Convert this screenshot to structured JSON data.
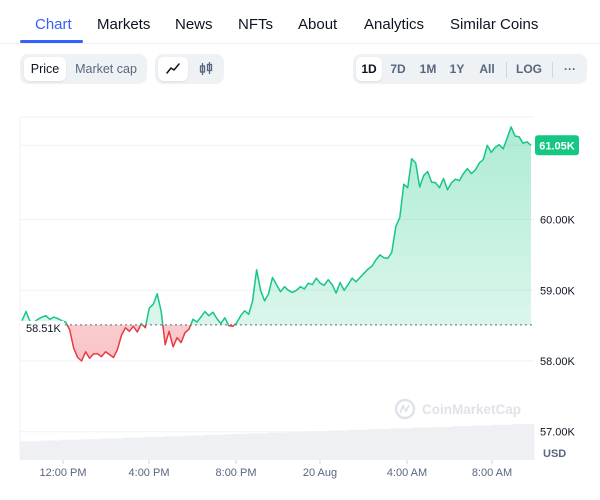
{
  "tabs": [
    "Chart",
    "Markets",
    "News",
    "NFTs",
    "About",
    "Analytics",
    "Similar Coins"
  ],
  "active_tab": "Chart",
  "data_toggle": {
    "options": [
      "Price",
      "Market cap"
    ],
    "selected": "Price"
  },
  "chart_type_toggle": {
    "options": [
      "line-chart-icon",
      "candlestick-icon"
    ],
    "selected": "line-chart-icon"
  },
  "range_toggle": {
    "options": [
      "1D",
      "7D",
      "1M",
      "1Y",
      "All"
    ],
    "selected": "1D",
    "log_label": "LOG",
    "more_label": "···"
  },
  "colors": {
    "accent": "#3861fb",
    "up": "#16c784",
    "down": "#ea3943",
    "price_tag_bg": "#16c784"
  },
  "chart_data": {
    "type": "area",
    "x_ticks": [
      "12:00 PM",
      "4:00 PM",
      "8:00 PM",
      "20 Aug",
      "4:00 AM",
      "8:00 AM"
    ],
    "y_ticks": [
      "61.05K",
      "60.00K",
      "59.00K",
      "58.00K",
      "57.00K"
    ],
    "ylim": [
      56600,
      61450
    ],
    "yunit": "USD",
    "reference_label": "58.51K",
    "reference_value": 58510,
    "current_label": "61.05K",
    "current_value": 61050,
    "watermark": "CoinMarketCap",
    "series": [
      {
        "values": [
          58570,
          58700,
          58560,
          58550,
          58590,
          58620,
          58640,
          58590,
          58620,
          58600,
          58570,
          58550,
          58440,
          58180,
          58050,
          58000,
          58130,
          58040,
          58100,
          58100,
          58060,
          58130,
          58090,
          58050,
          58160,
          58360,
          58470,
          58420,
          58490,
          58410,
          58530,
          58470,
          58750,
          58800,
          58950,
          58700,
          58230,
          58420,
          58200,
          58330,
          58260,
          58400,
          58450,
          58590,
          58550,
          58620,
          58700,
          58640,
          58690,
          58600,
          58530,
          58610,
          58500,
          58490,
          58540,
          58640,
          58710,
          58660,
          58850,
          59290,
          59000,
          58850,
          58950,
          59180,
          59080,
          58980,
          59050,
          59000,
          58970,
          59000,
          59050,
          59020,
          59100,
          59080,
          59170,
          59100,
          59070,
          59150,
          59080,
          58960,
          59110,
          59000,
          59080,
          59170,
          59120,
          59180,
          59240,
          59300,
          59340,
          59430,
          59500,
          59460,
          59450,
          59540,
          59900,
          60030,
          60500,
          60450,
          60860,
          60800,
          60460,
          60620,
          60680,
          60530,
          60520,
          60450,
          60580,
          60420,
          60520,
          60570,
          60550,
          60650,
          60720,
          60650,
          60700,
          60800,
          60850,
          61050,
          60950,
          61020,
          61060,
          61000,
          61150,
          61310,
          61180,
          61170,
          61080,
          61100,
          61050
        ]
      },
      {
        "name": "volume",
        "values": [
          0.52,
          0.54,
          0.56,
          0.58,
          0.6,
          0.62,
          0.64,
          0.66,
          0.68,
          0.7,
          0.72,
          0.74,
          0.76,
          0.78,
          0.8,
          0.82,
          0.84,
          0.86,
          0.88,
          0.9,
          0.92,
          0.94,
          0.96,
          0.98,
          1.0
        ]
      }
    ]
  }
}
